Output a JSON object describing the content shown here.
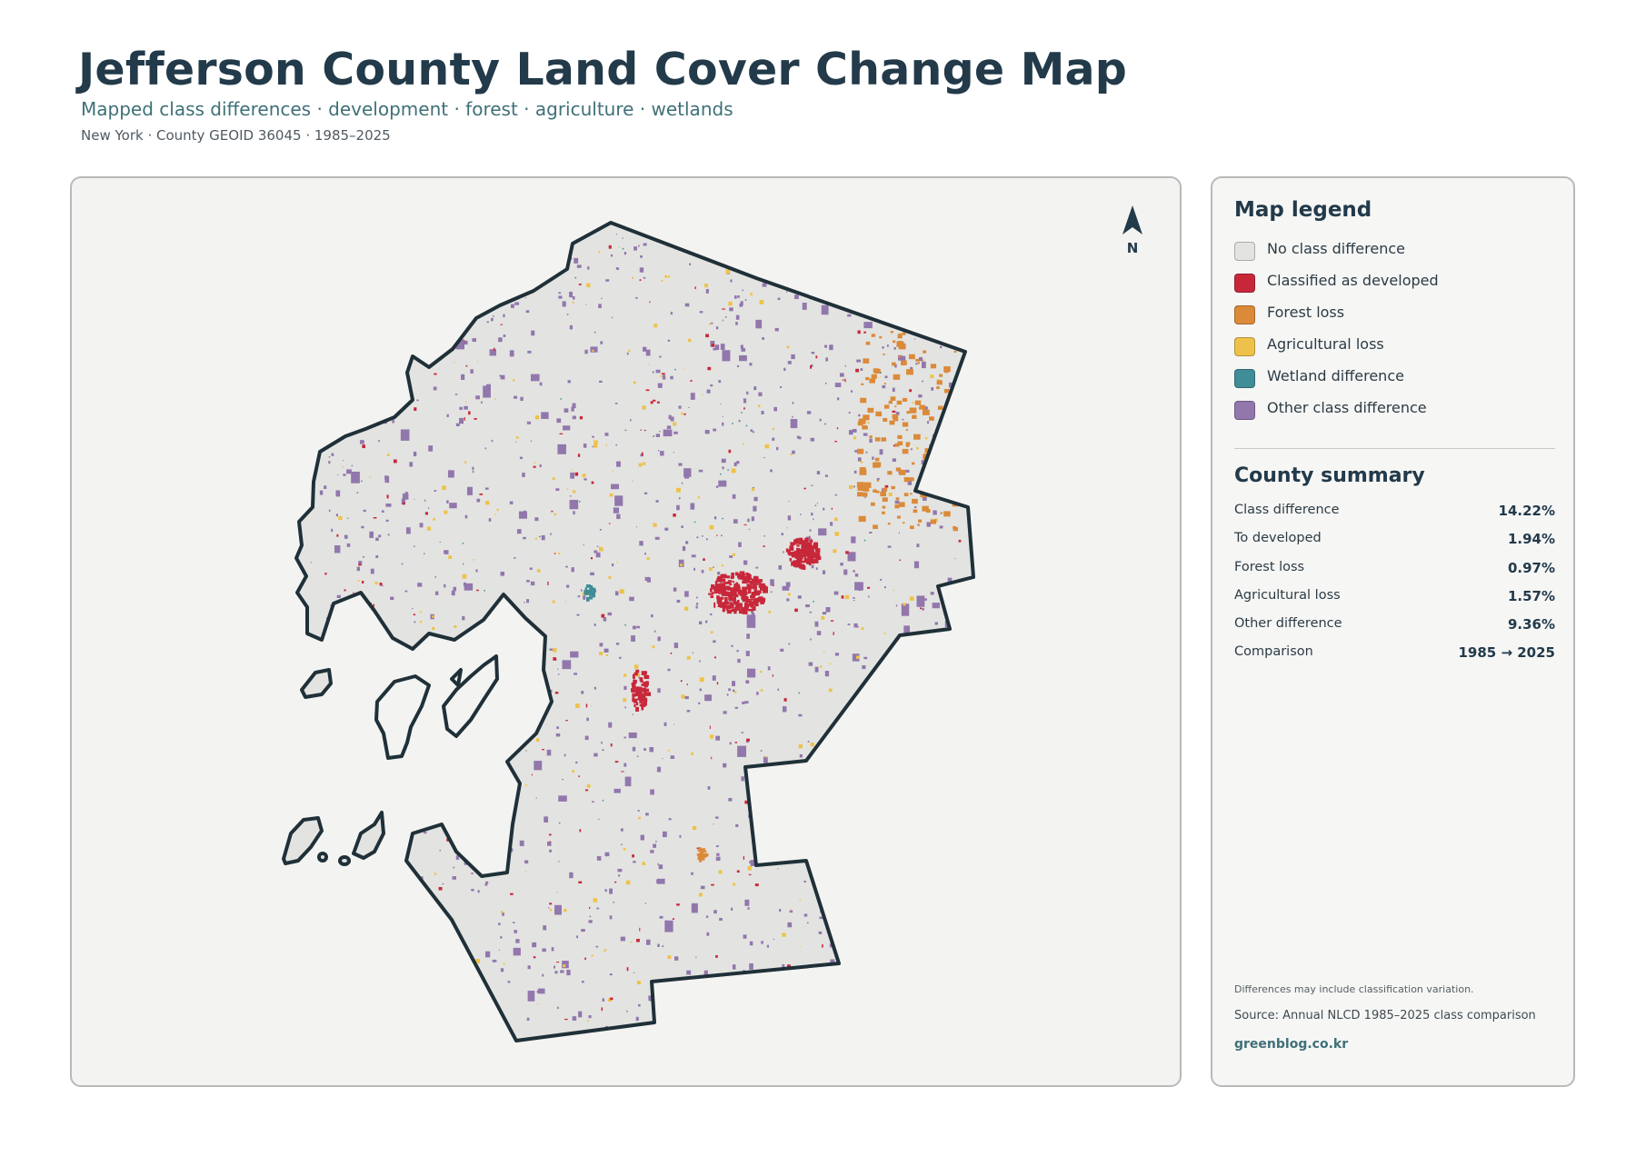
{
  "header": {
    "title": "Jefferson County Land Cover Change Map",
    "subtitle": "Mapped class differences · development · forest · agriculture · wetlands",
    "meta": "New York · County GEOID 36045 · 1985–2025"
  },
  "map": {
    "north_label": "N",
    "background_color": "#e3e4e1",
    "outline_color": "#1f3038"
  },
  "legend": {
    "title": "Map legend",
    "items": [
      {
        "label": "No class difference",
        "color": "#e3e3e0"
      },
      {
        "label": "Classified as developed",
        "color": "#c8273a"
      },
      {
        "label": "Forest loss",
        "color": "#db8a3a"
      },
      {
        "label": "Agricultural loss",
        "color": "#eec24a"
      },
      {
        "label": "Wetland difference",
        "color": "#3f8d96"
      },
      {
        "label": "Other class difference",
        "color": "#9277ad"
      }
    ]
  },
  "summary": {
    "title": "County summary",
    "rows": [
      {
        "label": "Class difference",
        "value": "14.22%"
      },
      {
        "label": "To developed",
        "value": "1.94%"
      },
      {
        "label": "Forest loss",
        "value": "0.97%"
      },
      {
        "label": "Agricultural loss",
        "value": "1.57%"
      },
      {
        "label": "Other difference",
        "value": "9.36%"
      },
      {
        "label": "Comparison",
        "value": "1985 → 2025"
      }
    ]
  },
  "footer": {
    "note": "Differences may include classification variation.",
    "source": "Source: Annual NLCD 1985–2025 class comparison",
    "credit": "greenblog.co.kr"
  }
}
